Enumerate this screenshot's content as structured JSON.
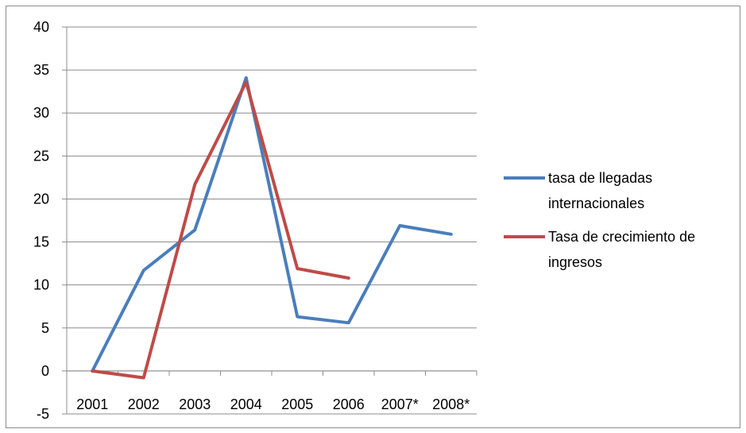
{
  "chart_data": {
    "type": "line",
    "title": "",
    "xlabel": "",
    "ylabel": "",
    "categories": [
      "2001",
      "2002",
      "2003",
      "2004",
      "2005",
      "2006",
      "2007*",
      "2008*"
    ],
    "ylim": [
      -5,
      40
    ],
    "yticks": [
      "-5",
      "0",
      "5",
      "10",
      "15",
      "20",
      "25",
      "30",
      "35",
      "40"
    ],
    "grid": true,
    "legend_position": "right",
    "series": [
      {
        "name_lines": [
          "tasa de llegadas",
          "internacionales"
        ],
        "name": "tasa de llegadas internacionales",
        "color": "#4a7ebb",
        "values": [
          0,
          11.7,
          16.4,
          34.1,
          6.3,
          5.6,
          16.9,
          15.9
        ]
      },
      {
        "name_lines": [
          "Tasa de crecimiento de",
          "ingresos"
        ],
        "name": "Tasa de crecimiento de ingresos",
        "color": "#be4b48",
        "values": [
          0,
          -0.8,
          21.7,
          33.6,
          11.9,
          10.8,
          null,
          null
        ]
      }
    ]
  }
}
